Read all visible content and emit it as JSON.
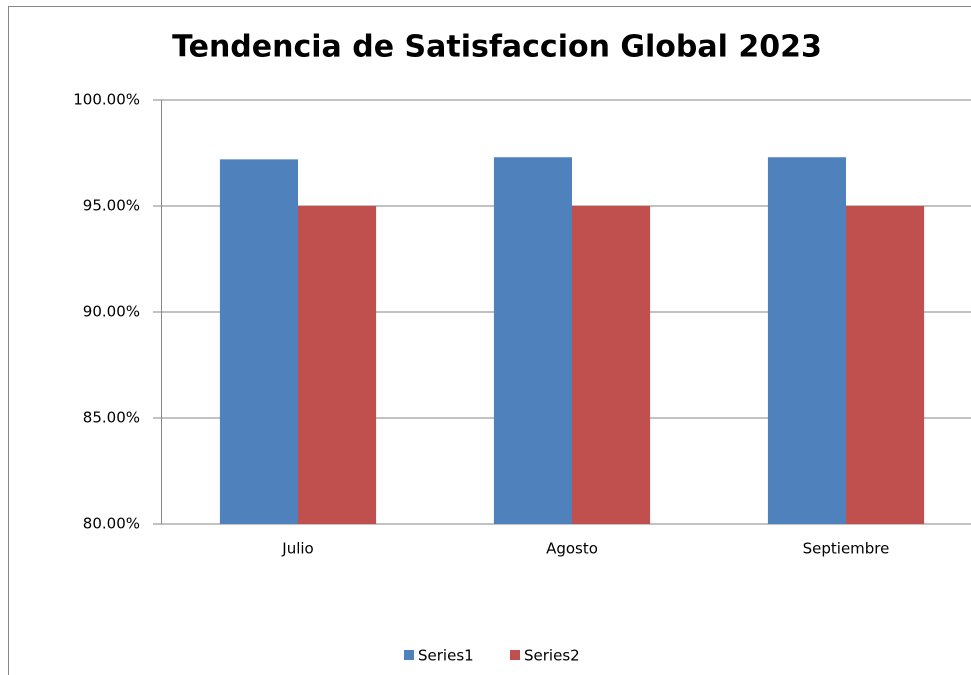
{
  "chart_data": {
    "type": "bar",
    "title": "Tendencia de Satisfaccion Global  2023",
    "categories": [
      "Julio",
      "Agosto",
      "Septiembre"
    ],
    "series": [
      {
        "name": "Series1",
        "color": "#4f81bd",
        "values": [
          97.2,
          97.3,
          97.3
        ]
      },
      {
        "name": "Series2",
        "color": "#c0504d",
        "values": [
          95,
          95,
          95
        ]
      }
    ],
    "ylim": [
      80,
      100
    ],
    "yticks": [
      {
        "value": 80,
        "label": "80.00%"
      },
      {
        "value": 85,
        "label": "85.00%"
      },
      {
        "value": 90,
        "label": "90.00%"
      },
      {
        "value": 95,
        "label": "95.00%"
      },
      {
        "value": 100,
        "label": "100.00%"
      }
    ],
    "grid": true,
    "legend": "bottom"
  }
}
